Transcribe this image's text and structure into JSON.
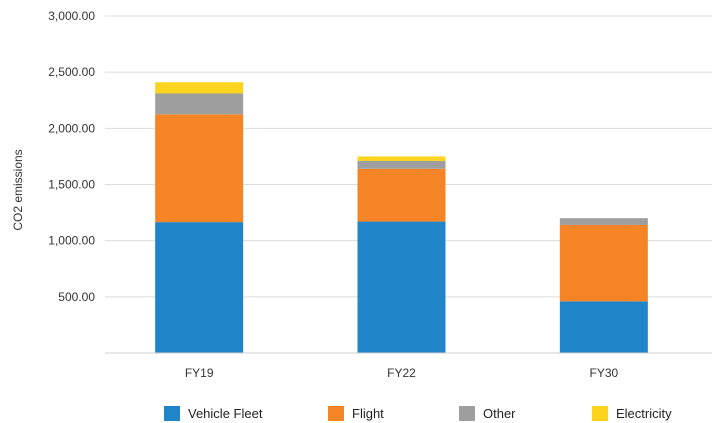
{
  "chart_data": {
    "type": "bar",
    "stacked": true,
    "categories": [
      "FY19",
      "FY22",
      "FY30"
    ],
    "series": [
      {
        "name": "Vehicle Fleet",
        "color": "#1f84c8",
        "values": [
          1165,
          1170,
          460
        ]
      },
      {
        "name": "Flight",
        "color": "#f48426",
        "values": [
          960,
          470,
          680
        ]
      },
      {
        "name": "Other",
        "color": "#9e9e9e",
        "values": [
          185,
          70,
          60
        ]
      },
      {
        "name": "Electricity",
        "color": "#fcd31d",
        "values": [
          100,
          40,
          0
        ]
      }
    ],
    "title": "",
    "xlabel": "",
    "ylabel": "CO2 emissions",
    "ylim": [
      0,
      3000
    ],
    "yticks": [
      "500.00",
      "1,000.00",
      "1,500.00",
      "2,000.00",
      "2,500.00",
      "3,000.00"
    ],
    "grid": true,
    "legend_position": "bottom"
  }
}
